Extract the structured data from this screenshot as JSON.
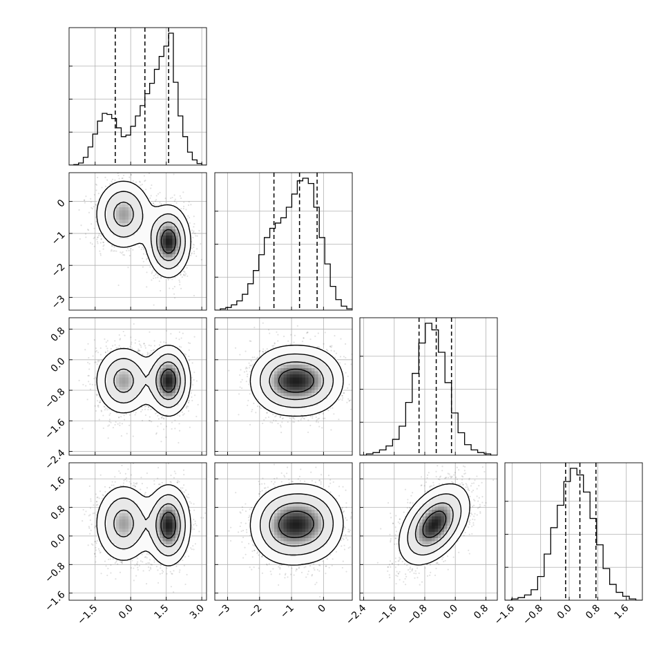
{
  "chart_data": {
    "type": "corner",
    "grid": true,
    "params": [
      {
        "ticks": [
          -1.5,
          0.0,
          1.5,
          3.0
        ],
        "tick_labels": [
          "−1.5",
          "0.0",
          "1.5",
          "3.0"
        ],
        "range": [
          -2.6,
          3.2
        ],
        "quantiles": [
          -0.65,
          0.6,
          1.6
        ]
      },
      {
        "ticks": [
          -3,
          -2,
          -1,
          0
        ],
        "tick_labels": [
          "−3",
          "−2",
          "−1",
          "0"
        ],
        "range": [
          -3.4,
          0.9
        ],
        "quantiles": [
          -1.55,
          -0.75,
          -0.2
        ]
      },
      {
        "ticks": [
          -2.4,
          -1.6,
          -0.8,
          0.0,
          0.8
        ],
        "tick_labels": [
          "−2.4",
          "−1.6",
          "−0.8",
          "0.0",
          "0.8"
        ],
        "range": [
          -2.5,
          1.1
        ],
        "quantiles": [
          -0.95,
          -0.5,
          -0.1
        ]
      },
      {
        "ticks": [
          -1.6,
          -0.8,
          0.0,
          0.8,
          1.6
        ],
        "tick_labels": [
          "−1.6",
          "−0.8",
          "0.0",
          "0.8",
          "1.6"
        ],
        "range": [
          -1.8,
          2.05
        ],
        "quantiles": [
          -0.1,
          0.3,
          0.75
        ]
      }
    ],
    "histograms": [
      {
        "edges_range": [
          -2.6,
          3.2
        ],
        "counts": [
          0,
          0.01,
          0.04,
          0.15,
          0.35,
          0.6,
          0.85,
          1.0,
          0.98,
          0.9,
          0.72,
          0.55,
          0.58,
          0.75,
          0.95,
          1.15,
          1.38,
          1.58,
          1.85,
          2.1,
          2.3,
          2.55,
          1.6,
          0.95,
          0.55,
          0.25,
          0.1,
          0.03,
          0
        ]
      },
      {
        "edges_range": [
          -3.4,
          0.9
        ],
        "counts": [
          0,
          0.01,
          0.02,
          0.04,
          0.07,
          0.12,
          0.2,
          0.3,
          0.42,
          0.55,
          0.62,
          0.66,
          0.7,
          0.78,
          0.88,
          0.98,
          1.0,
          0.96,
          0.78,
          0.55,
          0.35,
          0.18,
          0.08,
          0.03,
          0.01
        ]
      },
      {
        "edges_range": [
          -2.5,
          1.1
        ],
        "counts": [
          0,
          0.01,
          0.02,
          0.04,
          0.07,
          0.12,
          0.22,
          0.4,
          0.62,
          0.85,
          1.0,
          0.95,
          0.78,
          0.55,
          0.32,
          0.17,
          0.08,
          0.04,
          0.02,
          0.01,
          0
        ]
      },
      {
        "edges_range": [
          -1.8,
          2.05
        ],
        "counts": [
          0,
          0.01,
          0.02,
          0.04,
          0.08,
          0.18,
          0.35,
          0.55,
          0.72,
          0.9,
          1.0,
          0.95,
          0.82,
          0.62,
          0.42,
          0.24,
          0.12,
          0.06,
          0.03,
          0.01,
          0
        ]
      }
    ],
    "components": [
      {
        "weight": 0.48,
        "mean": [
          -0.3,
          -0.4,
          -0.55,
          0.35
        ],
        "std": [
          0.6,
          0.55,
          0.45,
          0.55
        ]
      },
      {
        "weight": 0.52,
        "mean": [
          1.6,
          -1.25,
          -0.55,
          0.3
        ],
        "std": [
          0.45,
          0.55,
          0.45,
          0.55
        ]
      }
    ],
    "correlations": {
      "2-1": 0.0,
      "3-1": 0.0,
      "3-2": 0.45
    }
  }
}
